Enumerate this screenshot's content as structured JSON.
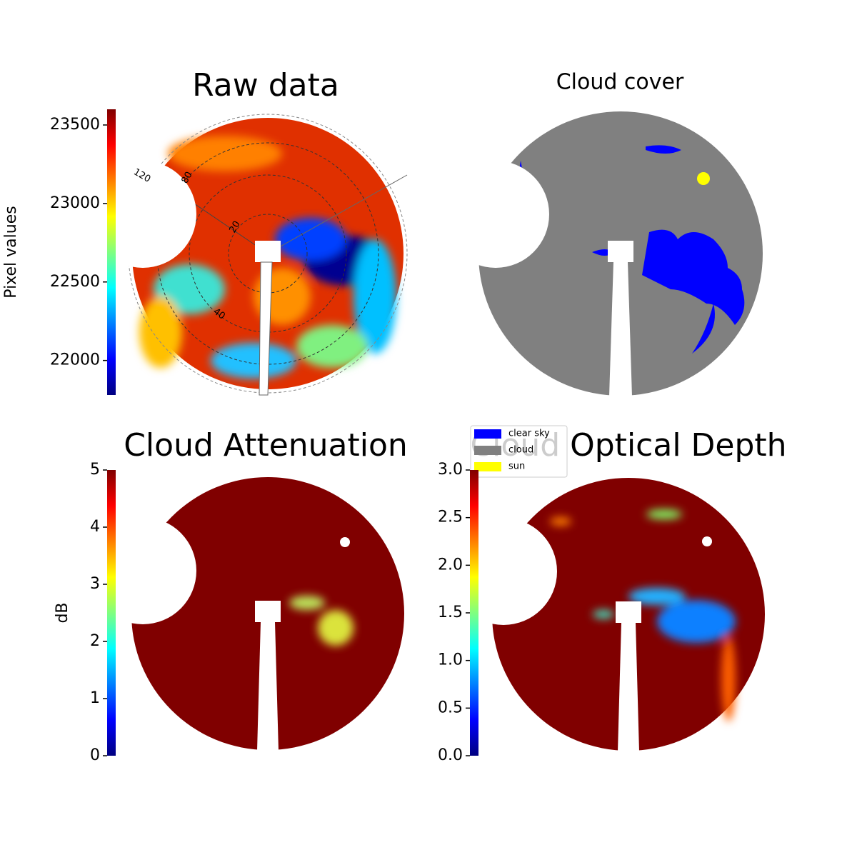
{
  "panels": [
    {
      "title": "Raw data",
      "colorbar": {
        "label": "Pixel values",
        "lim": [
          21780,
          23600
        ],
        "ticks": [
          22000,
          22500,
          23000,
          23500
        ]
      },
      "polar_labels": [
        "120",
        "80",
        "20",
        "40"
      ]
    },
    {
      "title": "Cloud cover",
      "legend": [
        {
          "name": "clear sky",
          "color": "#0000ff"
        },
        {
          "name": "cloud",
          "color": "#808080"
        },
        {
          "name": "sun",
          "color": "#ffff00"
        }
      ]
    },
    {
      "title": "Cloud Attenuation",
      "colorbar": {
        "label": "dB",
        "lim": [
          0,
          5
        ],
        "ticks": [
          0,
          1,
          2,
          3,
          4,
          5
        ]
      }
    },
    {
      "title": "Cloud Optical Depth",
      "colorbar": {
        "lim": [
          0,
          3
        ],
        "ticks": [
          {
            "value": 0,
            "label": "0.0"
          },
          {
            "value": 0.5,
            "label": "0.5"
          },
          {
            "value": 1,
            "label": "1.0"
          },
          {
            "value": 1.5,
            "label": "1.5"
          },
          {
            "value": 2,
            "label": "2.0"
          },
          {
            "value": 2.5,
            "label": "2.5"
          },
          {
            "value": 3,
            "label": "3.0"
          }
        ]
      }
    }
  ]
}
